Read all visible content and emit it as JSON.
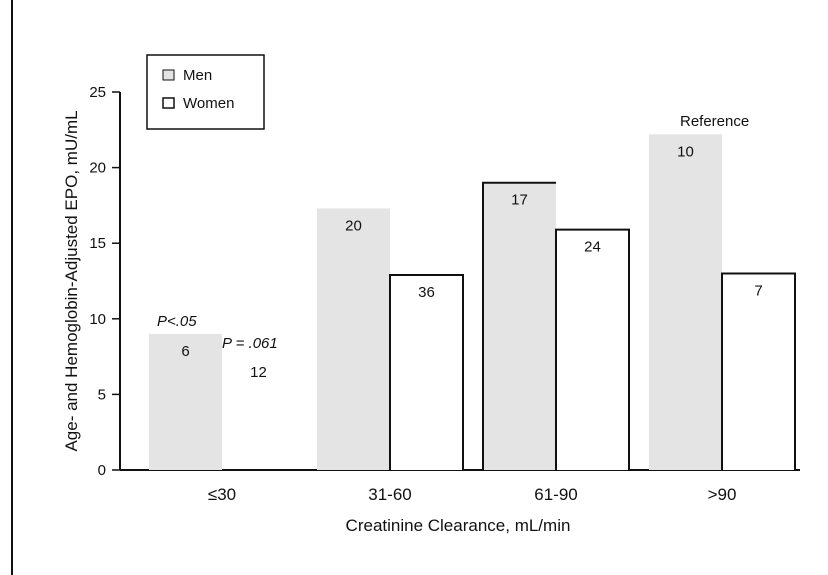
{
  "chart_data": {
    "type": "bar",
    "xlabel": "Creatinine Clearance, mL/min",
    "ylabel": "Age- and Hemoglobin-Adjusted EPO, mU/mL",
    "ylim": [
      0,
      25
    ],
    "yticks": [
      0,
      5,
      10,
      15,
      20,
      25
    ],
    "categories": [
      "≤30",
      "31-60",
      "61-90",
      ">90"
    ],
    "series": [
      {
        "name": "Men",
        "values": [
          9,
          17.3,
          19,
          22.2
        ],
        "n_labels": [
          "6",
          "20",
          "17",
          "10"
        ]
      },
      {
        "name": "Women",
        "values": [
          0,
          12.9,
          15.9,
          13
        ],
        "n_labels": [
          "12",
          "36",
          "24",
          "7"
        ]
      }
    ],
    "annotations": [
      {
        "text": "P<.05",
        "category": "≤30"
      },
      {
        "text": "P = .061",
        "category": "≤30"
      },
      {
        "text": "Reference",
        "category": ">90"
      }
    ],
    "legend": {
      "position": "top-left",
      "entries": [
        "Men",
        "Women"
      ]
    },
    "grid": false,
    "colors": {
      "men_fill": "#e4e4e4",
      "women_stroke": "#111111",
      "axis": "#111111"
    }
  }
}
